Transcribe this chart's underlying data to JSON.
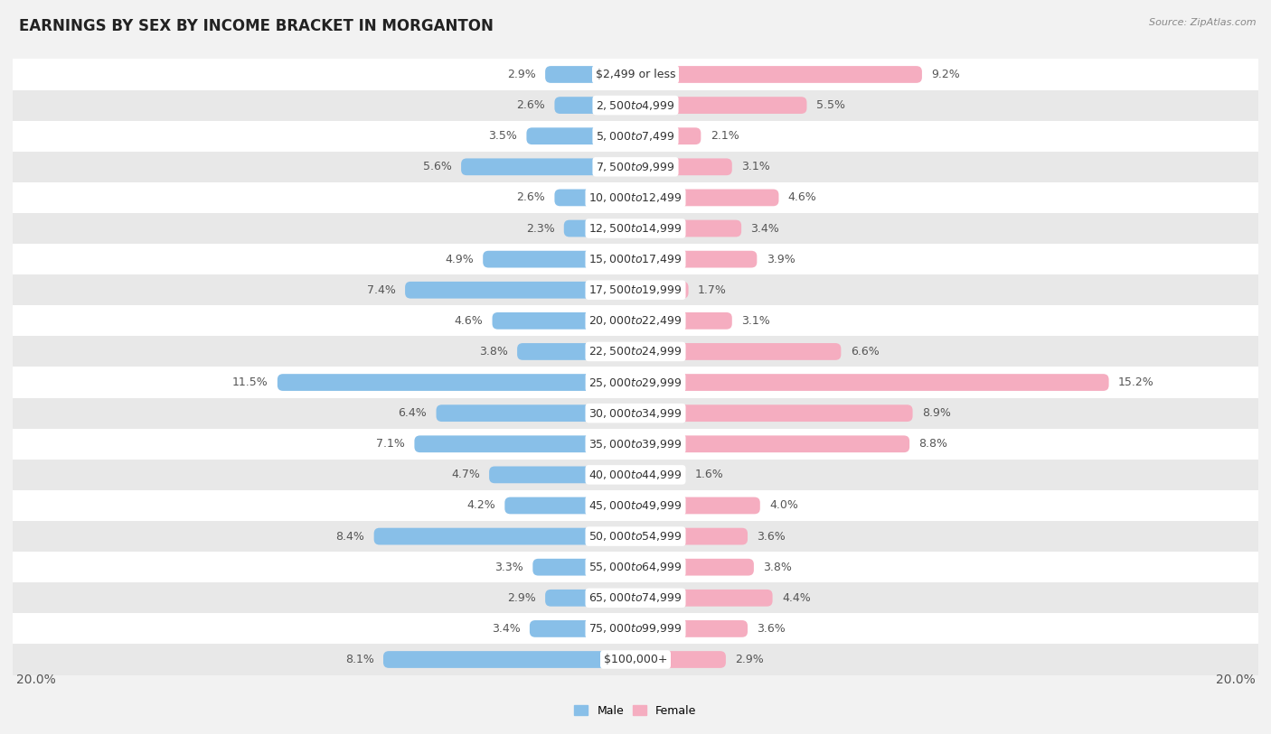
{
  "title": "EARNINGS BY SEX BY INCOME BRACKET IN MORGANTON",
  "source": "Source: ZipAtlas.com",
  "categories": [
    "$2,499 or less",
    "$2,500 to $4,999",
    "$5,000 to $7,499",
    "$7,500 to $9,999",
    "$10,000 to $12,499",
    "$12,500 to $14,999",
    "$15,000 to $17,499",
    "$17,500 to $19,999",
    "$20,000 to $22,499",
    "$22,500 to $24,999",
    "$25,000 to $29,999",
    "$30,000 to $34,999",
    "$35,000 to $39,999",
    "$40,000 to $44,999",
    "$45,000 to $49,999",
    "$50,000 to $54,999",
    "$55,000 to $64,999",
    "$65,000 to $74,999",
    "$75,000 to $99,999",
    "$100,000+"
  ],
  "male": [
    2.9,
    2.6,
    3.5,
    5.6,
    2.6,
    2.3,
    4.9,
    7.4,
    4.6,
    3.8,
    11.5,
    6.4,
    7.1,
    4.7,
    4.2,
    8.4,
    3.3,
    2.9,
    3.4,
    8.1
  ],
  "female": [
    9.2,
    5.5,
    2.1,
    3.1,
    4.6,
    3.4,
    3.9,
    1.7,
    3.1,
    6.6,
    15.2,
    8.9,
    8.8,
    1.6,
    4.0,
    3.6,
    3.8,
    4.4,
    3.6,
    2.9
  ],
  "male_color": "#88bfe8",
  "female_color": "#f5adc0",
  "bg_color": "#f2f2f2",
  "row_bg_white": "#ffffff",
  "row_bg_gray": "#e8e8e8",
  "label_bg": "#ffffff",
  "text_color": "#555555",
  "xlim": 20.0,
  "bar_height": 0.55,
  "title_fontsize": 12,
  "label_fontsize": 9,
  "cat_fontsize": 9,
  "axis_fontsize": 10
}
